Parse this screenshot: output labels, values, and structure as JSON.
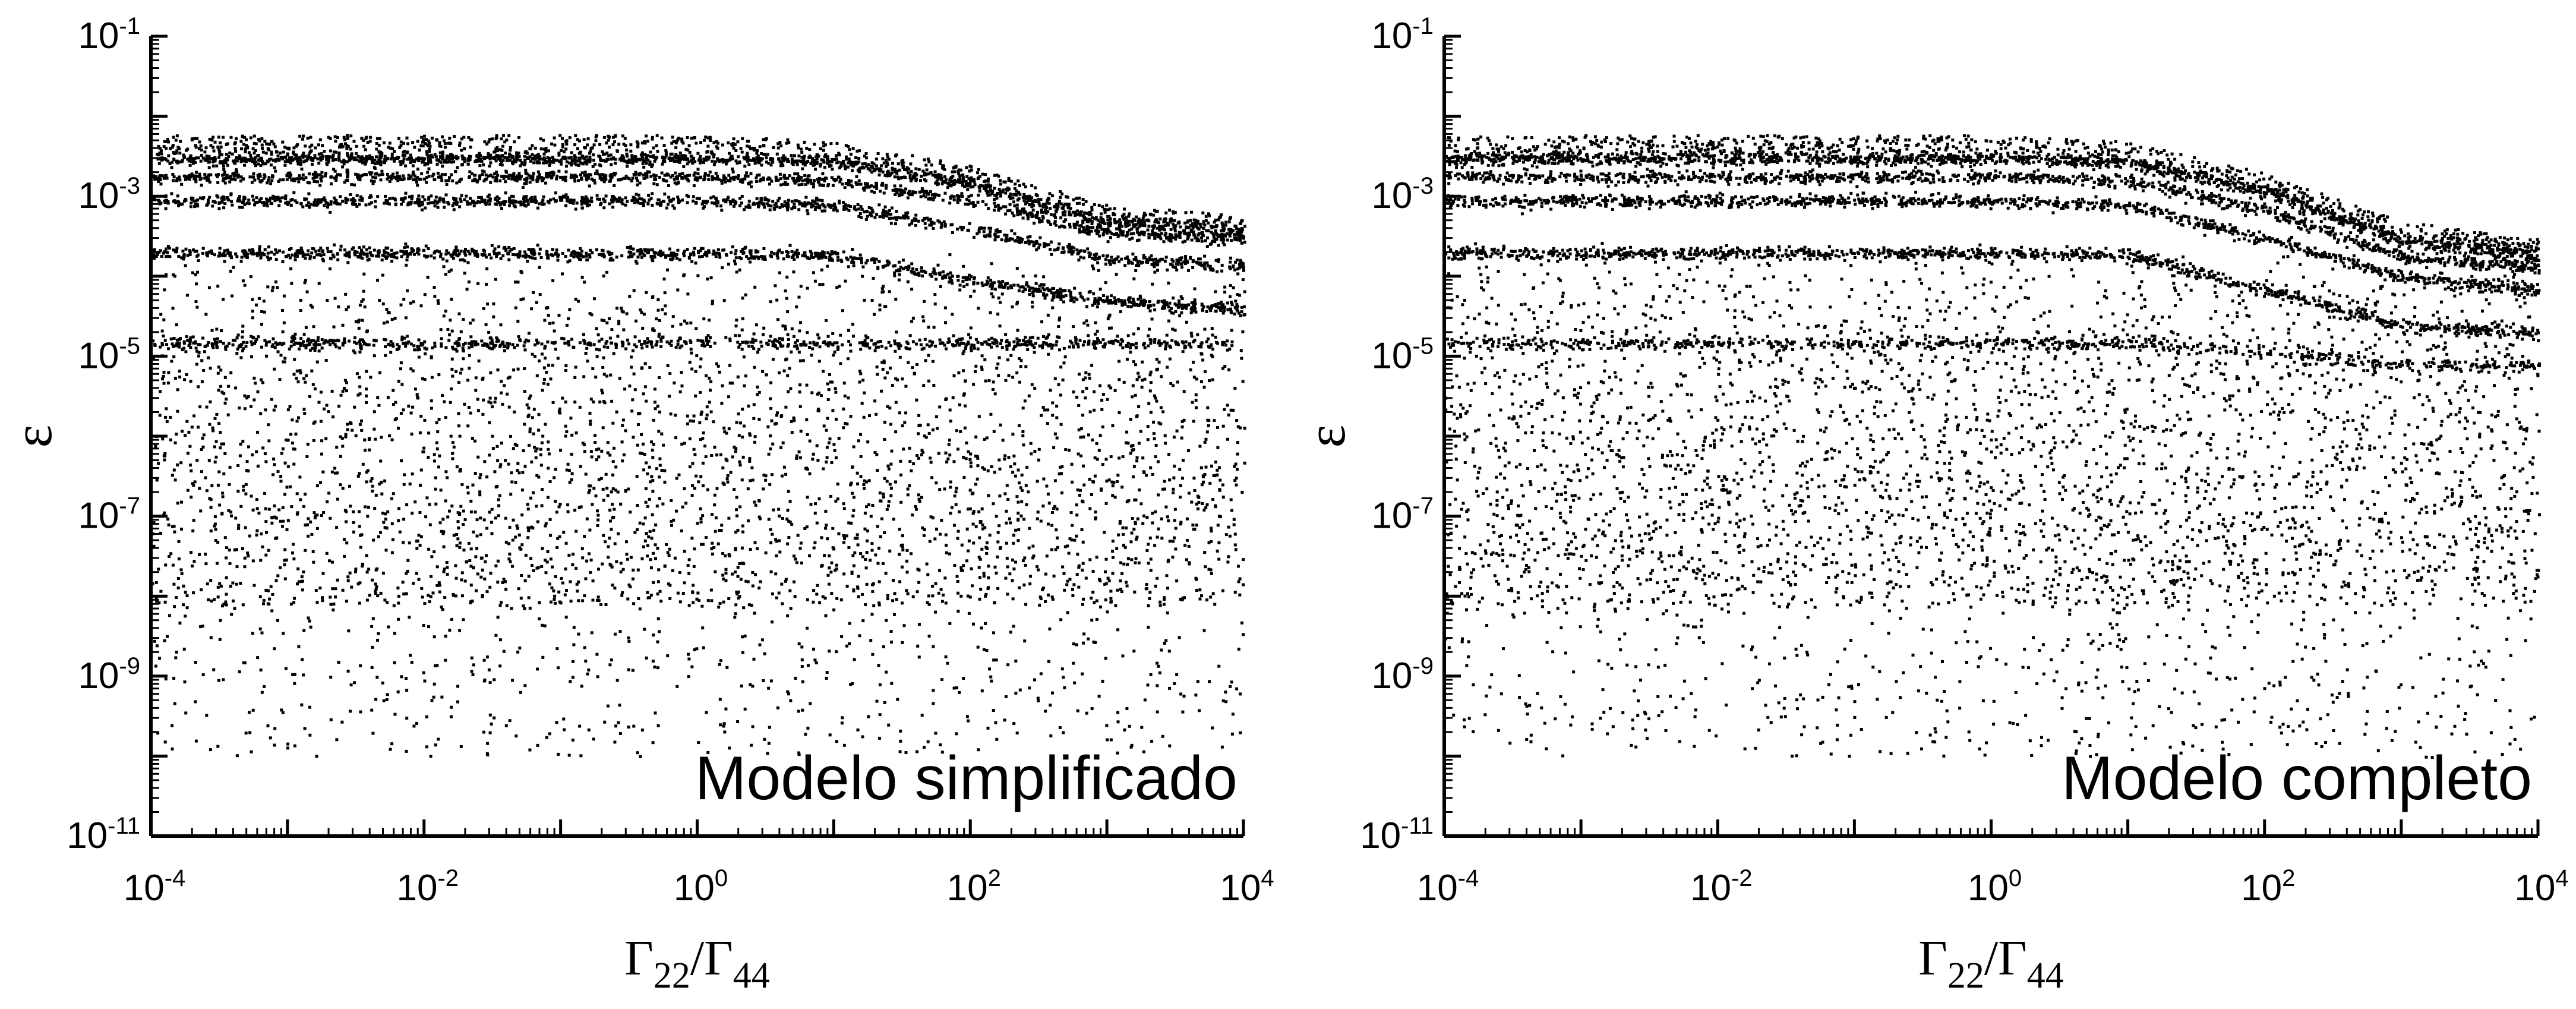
{
  "chart_data": [
    {
      "type": "scatter",
      "annotation": "Modelo simplificado",
      "xlabel": "Γ22/Γ44",
      "ylabel": "ε",
      "xscale": "log",
      "yscale": "log",
      "xlim": [
        0.0001,
        10000
      ],
      "ylim": [
        1e-11,
        0.1
      ],
      "x_tick_labels": [
        "10^-4",
        "10^-2",
        "10^0",
        "10^2",
        "10^4"
      ],
      "y_tick_labels": [
        "10^-11",
        "10^-9",
        "10^-7",
        "10^-5",
        "10^-3",
        "10^-1"
      ],
      "grid": false,
      "marker_color": "#000000",
      "band_x": [
        0.0001,
        1,
        10,
        100,
        1000,
        10000
      ],
      "bands": [
        [
          0.006,
          0.006,
          0.005,
          0.0025,
          0.0008,
          0.0006
        ],
        [
          0.003,
          0.003,
          0.0028,
          0.0015,
          0.0005,
          0.0004
        ],
        [
          0.0018,
          0.0018,
          0.0016,
          0.0009,
          0.00035,
          0.0003
        ],
        [
          0.0009,
          0.0009,
          0.0008,
          0.0004,
          0.00017,
          0.00014
        ],
        [
          0.0002,
          0.0002,
          0.00019,
          9e-05,
          5e-05,
          4e-05
        ],
        [
          1.5e-05,
          1.5e-05,
          1.5e-05,
          1.5e-05,
          1.5e-05,
          1.5e-05
        ]
      ],
      "diffuse_range": [
        1e-10,
        0.0002
      ]
    },
    {
      "type": "scatter",
      "annotation": "Modelo completo",
      "xlabel": "Γ22/Γ44",
      "ylabel": "ε",
      "xscale": "log",
      "yscale": "log",
      "xlim": [
        0.0001,
        10000
      ],
      "ylim": [
        1e-11,
        0.1
      ],
      "x_tick_labels": [
        "10^-4",
        "10^-2",
        "10^0",
        "10^2",
        "10^4"
      ],
      "y_tick_labels": [
        "10^-11",
        "10^-9",
        "10^-7",
        "10^-5",
        "10^-3",
        "10^-1"
      ],
      "grid": false,
      "marker_color": "#000000",
      "band_x": [
        0.0001,
        1,
        10,
        100,
        1000,
        10000
      ],
      "bands": [
        [
          0.006,
          0.006,
          0.005,
          0.002,
          0.0005,
          0.0003
        ],
        [
          0.003,
          0.003,
          0.0028,
          0.0012,
          0.0003,
          0.0002
        ],
        [
          0.0018,
          0.0018,
          0.0016,
          0.0007,
          0.00018,
          0.00013
        ],
        [
          0.0009,
          0.0009,
          0.0008,
          0.0003,
          0.0001,
          7e-05
        ],
        [
          0.0002,
          0.0002,
          0.00019,
          7e-05,
          2.5e-05,
          2e-05
        ],
        [
          1.5e-05,
          1.5e-05,
          1.5e-05,
          1.2e-05,
          8e-06,
          8e-06
        ]
      ],
      "diffuse_range": [
        1e-10,
        0.0002
      ]
    }
  ]
}
